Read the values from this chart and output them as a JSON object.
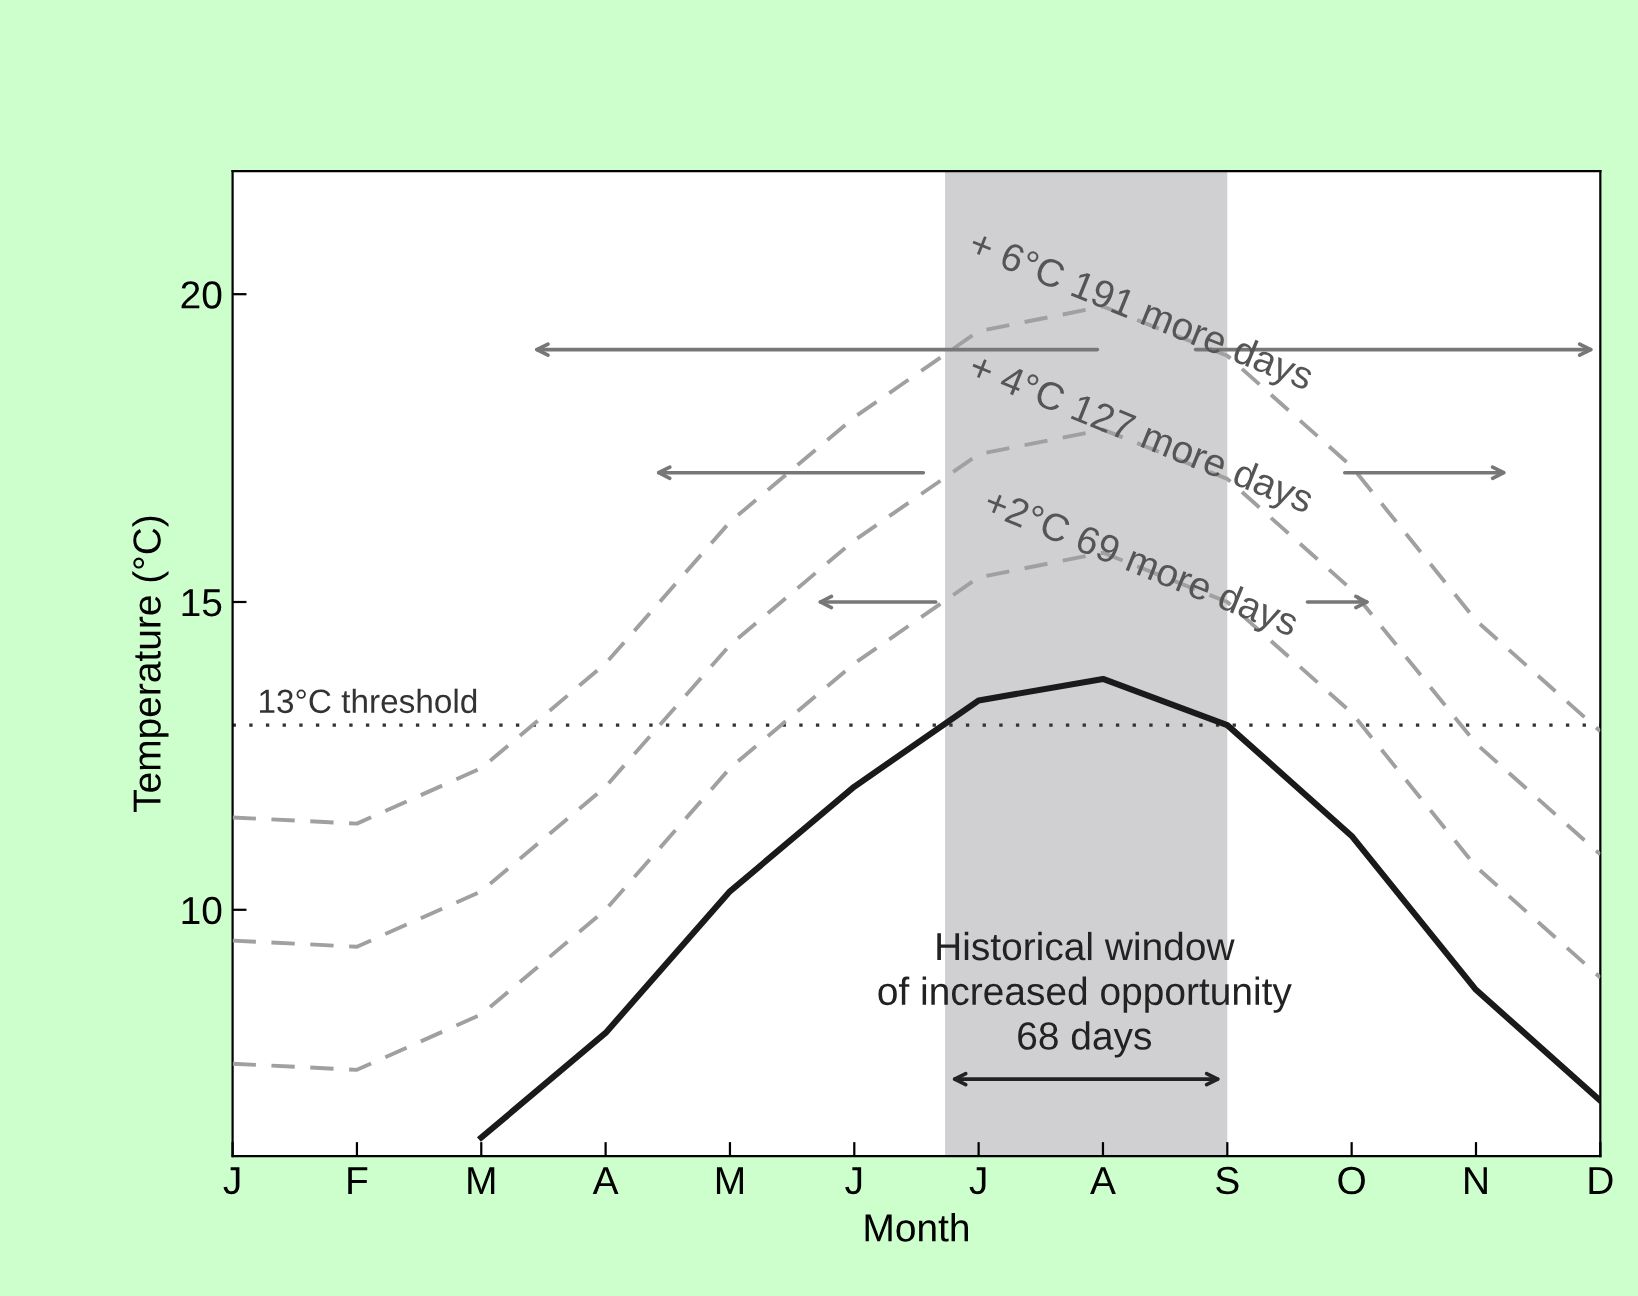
{
  "chart_data": {
    "type": "line",
    "xlabel": "Month",
    "ylabel": "Temperature (°C)",
    "categories": [
      "J",
      "F",
      "M",
      "A",
      "M",
      "J",
      "J",
      "A",
      "S",
      "O",
      "N",
      "D"
    ],
    "ylim": [
      6,
      22
    ],
    "yticks": [
      10,
      15,
      20
    ],
    "grid": false,
    "marker": "none",
    "series": [
      {
        "color": "#1a1a1a",
        "line_style": "solid",
        "values": [
          null,
          null,
          6.3,
          8.0,
          10.3,
          12.0,
          13.4,
          13.75,
          13.0,
          11.2,
          8.7,
          6.9
        ]
      },
      {
        "color": "#a0a0a0",
        "line_style": "dashed",
        "values": [
          7.5,
          7.4,
          8.3,
          10.0,
          12.3,
          14.0,
          15.4,
          15.8,
          15.0,
          13.2,
          10.7,
          8.9
        ]
      },
      {
        "color": "#a0a0a0",
        "line_style": "dashed",
        "values": [
          9.5,
          9.4,
          10.3,
          12.0,
          14.3,
          16.0,
          17.4,
          17.8,
          17.0,
          15.2,
          12.7,
          10.9
        ]
      },
      {
        "color": "#a0a0a0",
        "line_style": "dashed",
        "values": [
          11.5,
          11.4,
          12.3,
          14.0,
          16.3,
          18.0,
          19.4,
          19.8,
          19.0,
          17.2,
          14.7,
          12.9
        ]
      }
    ],
    "ref_lines": [
      {
        "axis": "y",
        "value": 13,
        "label": "13°C threshold",
        "color": "#333333",
        "line_style": "dotted"
      }
    ],
    "annotations": [
      "+ 6°C 191 more days",
      "+ 4°C 127 more days",
      "+2°C 69 more days",
      "Historical window\nof increased opportunity\n68 days"
    ]
  }
}
